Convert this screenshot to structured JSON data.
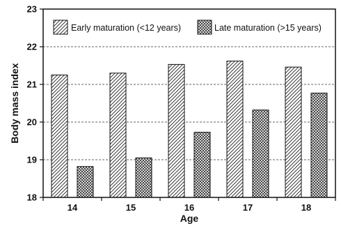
{
  "chart_data": {
    "type": "bar",
    "title": "",
    "xlabel": "Age",
    "ylabel": "Body mass index",
    "categories": [
      "14",
      "15",
      "16",
      "17",
      "18"
    ],
    "ylim": [
      18,
      23
    ],
    "yticks": [
      "18",
      "19",
      "20",
      "21",
      "22",
      "23"
    ],
    "grid": "horizontal dashed",
    "legend_position": "top",
    "series": [
      {
        "name": "Early maturation (<12 years)",
        "pattern": "diagonal-hatch",
        "values": [
          21.25,
          21.3,
          21.53,
          21.62,
          21.46
        ]
      },
      {
        "name": "Late maturation (>15 years)",
        "pattern": "crosshatch",
        "values": [
          18.82,
          19.05,
          19.73,
          20.32,
          20.77
        ]
      }
    ]
  }
}
